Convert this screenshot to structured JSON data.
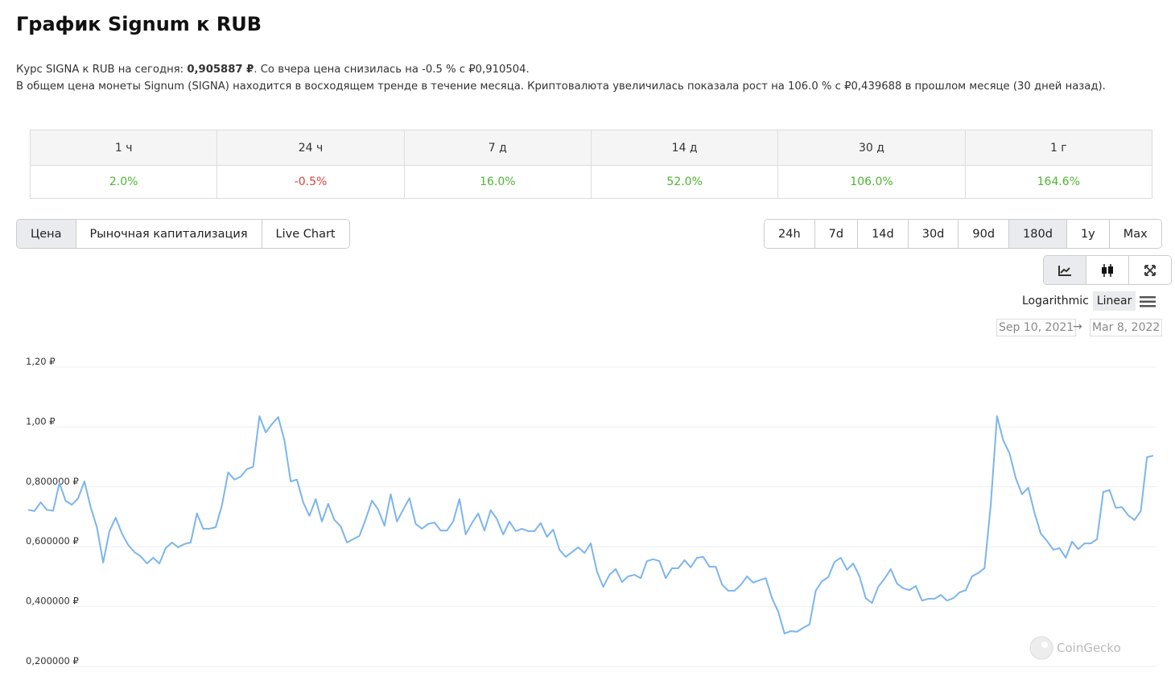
{
  "header": {
    "title": "График Signum к RUB"
  },
  "description": {
    "line1": {
      "prefix": "Курс SIGNA к RUB на сегодня: ",
      "price": "0,905887 ₽",
      "suffix": ". Со вчера цена снизилась на -0.5 % с ₽0,910504."
    },
    "line2": "В общем цена монеты Signum (SIGNA) находится в восходящем тренде в течение месяца. Криптовалюта увеличилась показала рост на 106.0 % с ₽0,439688 в прошлом месяце (30 дней назад)."
  },
  "table": {
    "headers": [
      "1 ч",
      "24 ч",
      "7 д",
      "14 д",
      "30 д",
      "1 г"
    ],
    "values": [
      "2.0%",
      "-0.5%",
      "16.0%",
      "52.0%",
      "106.0%",
      "164.6%"
    ]
  },
  "tabs": {
    "items": [
      "Цена",
      "Рыночная капитализация",
      "Live Chart"
    ],
    "active": 0
  },
  "ranges": {
    "items": [
      "24h",
      "7d",
      "14d",
      "30d",
      "90d",
      "180d",
      "1y",
      "Max"
    ],
    "active": 5
  },
  "scale": {
    "items": [
      "Logarithmic",
      "Linear"
    ],
    "active": 1
  },
  "dates": {
    "from": "Sep 10, 2021",
    "arrow": "→",
    "to": "Mar 8, 2022"
  },
  "watermark": "CoinGecko",
  "chart_data": {
    "type": "line",
    "color": "#7cb5ec",
    "grid": true,
    "ylim": [
      0.2,
      1.2
    ],
    "yticks": [
      {
        "value": 0.2,
        "label": "0,200000 ₽"
      },
      {
        "value": 0.4,
        "label": "0,400000 ₽"
      },
      {
        "value": 0.6,
        "label": "0,600000 ₽"
      },
      {
        "value": 0.8,
        "label": "0,800000 ₽"
      },
      {
        "value": 1.0,
        "label": "1,00 ₽"
      },
      {
        "value": 1.2,
        "label": "1,20 ₽"
      }
    ],
    "values": [
      0.723,
      0.719,
      0.748,
      0.723,
      0.72,
      0.813,
      0.753,
      0.74,
      0.762,
      0.818,
      0.732,
      0.665,
      0.547,
      0.652,
      0.697,
      0.644,
      0.606,
      0.582,
      0.568,
      0.544,
      0.563,
      0.544,
      0.595,
      0.614,
      0.598,
      0.609,
      0.614,
      0.711,
      0.66,
      0.66,
      0.665,
      0.738,
      0.848,
      0.824,
      0.834,
      0.859,
      0.867,
      1.036,
      0.982,
      1.009,
      1.033,
      0.955,
      0.818,
      0.824,
      0.748,
      0.703,
      0.759,
      0.684,
      0.743,
      0.689,
      0.668,
      0.614,
      0.625,
      0.636,
      0.692,
      0.754,
      0.724,
      0.67,
      0.775,
      0.684,
      0.724,
      0.762,
      0.676,
      0.66,
      0.676,
      0.681,
      0.654,
      0.654,
      0.684,
      0.759,
      0.641,
      0.679,
      0.711,
      0.654,
      0.722,
      0.692,
      0.641,
      0.684,
      0.652,
      0.66,
      0.652,
      0.652,
      0.679,
      0.633,
      0.657,
      0.59,
      0.566,
      0.582,
      0.598,
      0.579,
      0.611,
      0.517,
      0.466,
      0.506,
      0.525,
      0.482,
      0.501,
      0.506,
      0.495,
      0.552,
      0.558,
      0.552,
      0.495,
      0.528,
      0.528,
      0.555,
      0.531,
      0.563,
      0.566,
      0.533,
      0.533,
      0.474,
      0.453,
      0.453,
      0.472,
      0.501,
      0.48,
      0.488,
      0.495,
      0.428,
      0.383,
      0.31,
      0.318,
      0.316,
      0.329,
      0.34,
      0.453,
      0.485,
      0.498,
      0.549,
      0.563,
      0.523,
      0.544,
      0.501,
      0.428,
      0.412,
      0.466,
      0.493,
      0.525,
      0.477,
      0.461,
      0.455,
      0.469,
      0.42,
      0.426,
      0.426,
      0.439,
      0.42,
      0.428,
      0.447,
      0.455,
      0.501,
      0.512,
      0.528,
      0.74,
      1.036,
      0.955,
      0.912,
      0.829,
      0.775,
      0.797,
      0.713,
      0.644,
      0.619,
      0.59,
      0.595,
      0.563,
      0.617,
      0.592,
      0.611,
      0.611,
      0.625,
      0.783,
      0.789,
      0.73,
      0.732,
      0.705,
      0.689,
      0.719,
      0.899,
      0.904
    ]
  }
}
